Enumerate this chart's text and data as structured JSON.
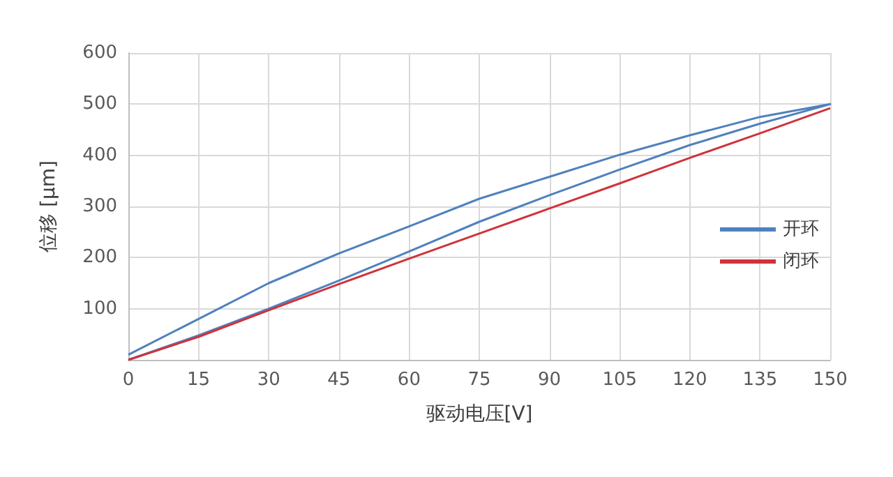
{
  "chart_data": {
    "type": "line",
    "xlabel": "驱动电压[V]",
    "ylabel": "位移 [μm]",
    "xlim": [
      0,
      150
    ],
    "xticks": [
      0,
      15,
      30,
      45,
      60,
      75,
      90,
      105,
      120,
      135,
      150
    ],
    "ylim": [
      0,
      600
    ],
    "yticks": [
      {
        "value": 0,
        "label": null
      },
      100,
      200,
      300,
      400,
      500,
      600
    ],
    "grid": true,
    "legend": "right",
    "marker": "none",
    "line_style": "solid",
    "series": [
      {
        "name": "开环",
        "color": "#4f81bd",
        "x": [
          0,
          15,
          30,
          45,
          60,
          75,
          90,
          105,
          120,
          135,
          150,
          135,
          120,
          105,
          90,
          75,
          60,
          45,
          30,
          15,
          0
        ],
        "values": [
          0,
          48,
          100,
          155,
          212,
          270,
          322,
          372,
          420,
          462,
          500,
          475,
          439,
          401,
          358,
          315,
          261,
          208,
          150,
          80,
          10
        ]
      },
      {
        "name": "闭环",
        "color": "#d0323a",
        "x": [
          0,
          15,
          30,
          45,
          60,
          75,
          90,
          105,
          120,
          135,
          150
        ],
        "values": [
          0,
          45,
          97,
          148,
          198,
          247,
          296,
          345,
          395,
          443,
          492
        ]
      }
    ]
  }
}
